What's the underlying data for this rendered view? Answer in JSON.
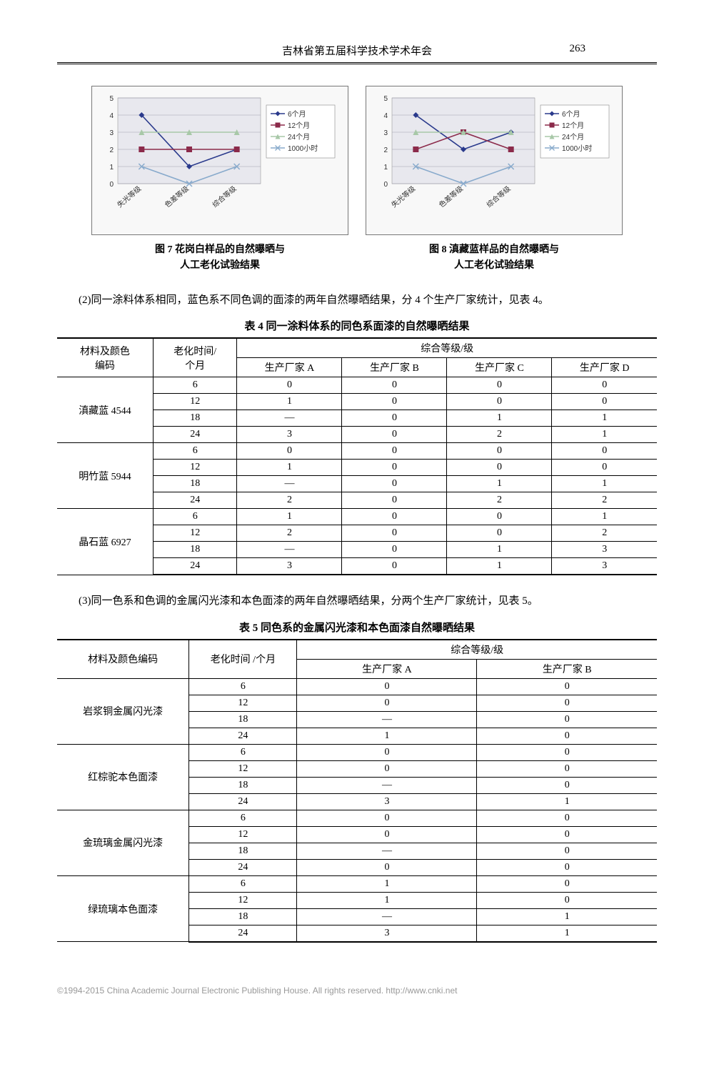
{
  "header": {
    "title": "吉林省第五届科学技术学术年会",
    "page": "263"
  },
  "chart_common": {
    "ylim": [
      0,
      5
    ],
    "yticks": [
      0,
      1,
      2,
      3,
      4,
      5
    ],
    "x_labels": [
      "失光等级",
      "色差等级",
      "综合等级"
    ],
    "legend": [
      "6个月",
      "12个月",
      "24个月",
      "1000小时"
    ],
    "series_colors": [
      "#2a3a8c",
      "#8b2a4a",
      "#a8c8a8",
      "#88aacc"
    ],
    "marker_shapes": [
      "diamond",
      "square",
      "triangle",
      "x"
    ],
    "plot_bg": "#e8e8ee",
    "grid_color": "#a0a0b0",
    "axis_fontsize": 10,
    "legend_fontsize": 10
  },
  "chart7": {
    "caption_line1": "图 7  花岗白样品的自然曝晒与",
    "caption_line2": "人工老化试验结果",
    "series": {
      "6个月": [
        4,
        1,
        2
      ],
      "12个月": [
        2,
        2,
        2
      ],
      "24个月": [
        3,
        3,
        3
      ],
      "1000小时": [
        1,
        0,
        1
      ]
    }
  },
  "chart8": {
    "caption_line1": "图 8  滇藏蓝样品的自然曝晒与",
    "caption_line2": "人工老化试验结果",
    "series": {
      "6个月": [
        4,
        2,
        3
      ],
      "12个月": [
        2,
        3,
        2
      ],
      "24个月": [
        3,
        3,
        3
      ],
      "1000小时": [
        1,
        0,
        1
      ]
    }
  },
  "para2": "(2)同一涂料体系相同，蓝色系不同色调的面漆的两年自然曝晒结果，分 4 个生产厂家统计，见表 4。",
  "table4": {
    "caption": "表 4  同一涂料体系的同色系面漆的自然曝晒结果",
    "head_mat": "材料及颜色编码",
    "head_time": "老化时间 / 个月",
    "head_grade": "综合等级/级",
    "cols": [
      "生产厂家 A",
      "生产厂家 B",
      "生产厂家 C",
      "生产厂家 D"
    ],
    "groups": [
      {
        "name": "滇藏蓝 4544",
        "rows": [
          [
            "6",
            "0",
            "0",
            "0",
            "0"
          ],
          [
            "12",
            "1",
            "0",
            "0",
            "0"
          ],
          [
            "18",
            "—",
            "0",
            "1",
            "1"
          ],
          [
            "24",
            "3",
            "0",
            "2",
            "1"
          ]
        ]
      },
      {
        "name": "明竹蓝 5944",
        "rows": [
          [
            "6",
            "0",
            "0",
            "0",
            "0"
          ],
          [
            "12",
            "1",
            "0",
            "0",
            "0"
          ],
          [
            "18",
            "—",
            "0",
            "1",
            "1"
          ],
          [
            "24",
            "2",
            "0",
            "2",
            "2"
          ]
        ]
      },
      {
        "name": "晶石蓝 6927",
        "rows": [
          [
            "6",
            "1",
            "0",
            "0",
            "1"
          ],
          [
            "12",
            "2",
            "0",
            "0",
            "2"
          ],
          [
            "18",
            "—",
            "0",
            "1",
            "3"
          ],
          [
            "24",
            "3",
            "0",
            "1",
            "3"
          ]
        ]
      }
    ]
  },
  "para3": "(3)同一色系和色调的金属闪光漆和本色面漆的两年自然曝晒结果，分两个生产厂家统计，见表 5。",
  "table5": {
    "caption": "表 5  同色系的金属闪光漆和本色面漆自然曝晒结果",
    "head_mat": "材料及颜色编码",
    "head_time": "老化时间 /个月",
    "head_grade": "综合等级/级",
    "cols": [
      "生产厂家 A",
      "生产厂家 B"
    ],
    "groups": [
      {
        "name": "岩浆铜金属闪光漆",
        "rows": [
          [
            "6",
            "0",
            "0"
          ],
          [
            "12",
            "0",
            "0"
          ],
          [
            "18",
            "—",
            "0"
          ],
          [
            "24",
            "1",
            "0"
          ]
        ]
      },
      {
        "name": "红棕驼本色面漆",
        "rows": [
          [
            "6",
            "0",
            "0"
          ],
          [
            "12",
            "0",
            "0"
          ],
          [
            "18",
            "—",
            "0"
          ],
          [
            "24",
            "3",
            "1"
          ]
        ]
      },
      {
        "name": "金琉璃金属闪光漆",
        "rows": [
          [
            "6",
            "0",
            "0"
          ],
          [
            "12",
            "0",
            "0"
          ],
          [
            "18",
            "—",
            "0"
          ],
          [
            "24",
            "0",
            "0"
          ]
        ]
      },
      {
        "name": "绿琉璃本色面漆",
        "rows": [
          [
            "6",
            "1",
            "0"
          ],
          [
            "12",
            "1",
            "0"
          ],
          [
            "18",
            "—",
            "1"
          ],
          [
            "24",
            "3",
            "1"
          ]
        ]
      }
    ]
  },
  "footer": "©1994-2015 China Academic Journal Electronic Publishing House. All rights reserved.   http://www.cnki.net"
}
